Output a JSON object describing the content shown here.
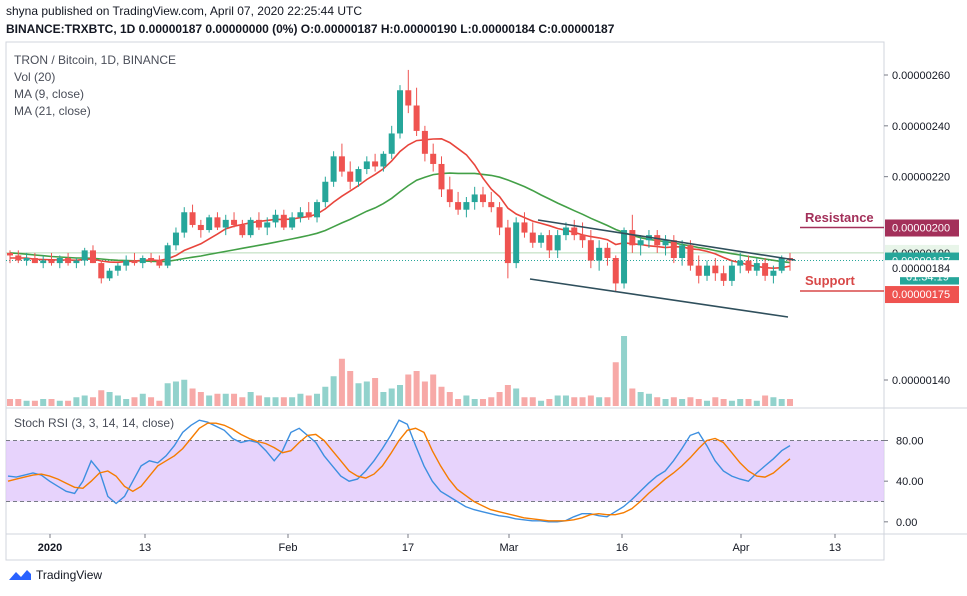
{
  "header": {
    "publish_line": "shyna published on TradingView.com, April 07, 2020 22:25:44 UTC",
    "quote_line": "BINANCE:TRXBTC, 1D  0.00000187  0.00000000 (0%)  O:0.00000187  H:0.00000190  L:0.00000184  C:0.00000187"
  },
  "legend": {
    "symbol": "TRON / Bitcoin, 1D, BINANCE",
    "vol": "Vol (20)",
    "ma9": "MA (9, close)",
    "ma21": "MA (21, close)",
    "stoch": "Stoch RSI (3, 3, 14, 14, close)"
  },
  "annotations": {
    "resistance": "Resistance",
    "support": "Support"
  },
  "price_badges": {
    "resistance": "0.00000200",
    "high": "0.00000190",
    "last": "0.00000187",
    "countdown": "01:34:19",
    "low": "0.00000184",
    "support": "0.00000175"
  },
  "brand": "TradingView",
  "colors": {
    "up": "#26a69a",
    "down": "#ef5350",
    "ma9": "#e8453c",
    "ma21": "#43a047",
    "channel": "#2f4f5c",
    "resistance": "#a3305a",
    "support": "#d84848",
    "rsi_k": "#3d8fe0",
    "rsi_d": "#f57c00",
    "rsi_band": "#e1c8fb"
  },
  "chart_data": [
    {
      "type": "candlestick",
      "title": "TRON / Bitcoin, 1D, BINANCE",
      "y_ticks": [
        "0.00000260",
        "0.00000240",
        "0.00000220",
        "0.00000140"
      ],
      "x_ticks": [
        "2020",
        "13",
        "Feb",
        "17",
        "Mar",
        "16",
        "Apr",
        "13"
      ],
      "ylim": [
        1.3e-06,
        2.7e-06
      ],
      "series": [
        {
          "name": "MA (9, close)",
          "type": "line",
          "values_ref": "ma9"
        },
        {
          "name": "MA (21, close)",
          "type": "line",
          "values_ref": "ma21"
        }
      ],
      "ohlc": [
        [
          190,
          191,
          186,
          189
        ],
        [
          189,
          191,
          186,
          187
        ],
        [
          187,
          190,
          185,
          188
        ],
        [
          188,
          190,
          186,
          186
        ],
        [
          186,
          189,
          184,
          187
        ],
        [
          187,
          190,
          185,
          186
        ],
        [
          186,
          189,
          184,
          188
        ],
        [
          188,
          190,
          185,
          186
        ],
        [
          186,
          188,
          184,
          187
        ],
        [
          187,
          192,
          185,
          191
        ],
        [
          191,
          193,
          186,
          186
        ],
        [
          186,
          187,
          178,
          180
        ],
        [
          180,
          184,
          179,
          183
        ],
        [
          183,
          186,
          181,
          185
        ],
        [
          185,
          189,
          183,
          187
        ],
        [
          187,
          190,
          185,
          186
        ],
        [
          186,
          189,
          184,
          188
        ],
        [
          188,
          190,
          186,
          187
        ],
        [
          187,
          189,
          184,
          185
        ],
        [
          185,
          194,
          184,
          193
        ],
        [
          193,
          200,
          191,
          198
        ],
        [
          198,
          208,
          196,
          206
        ],
        [
          206,
          209,
          200,
          201
        ],
        [
          201,
          203,
          196,
          199
        ],
        [
          199,
          205,
          198,
          204
        ],
        [
          204,
          206,
          199,
          200
        ],
        [
          200,
          205,
          197,
          203
        ],
        [
          203,
          206,
          200,
          201
        ],
        [
          201,
          203,
          196,
          197
        ],
        [
          197,
          204,
          196,
          203
        ],
        [
          203,
          206,
          199,
          200
        ],
        [
          200,
          204,
          197,
          202
        ],
        [
          202,
          207,
          200,
          205
        ],
        [
          205,
          207,
          199,
          200
        ],
        [
          200,
          206,
          199,
          204
        ],
        [
          204,
          208,
          202,
          206
        ],
        [
          206,
          210,
          203,
          204
        ],
        [
          204,
          211,
          202,
          210
        ],
        [
          210,
          220,
          208,
          218
        ],
        [
          218,
          230,
          216,
          228
        ],
        [
          228,
          233,
          220,
          222
        ],
        [
          222,
          226,
          215,
          218
        ],
        [
          218,
          224,
          216,
          223
        ],
        [
          223,
          228,
          221,
          226
        ],
        [
          226,
          229,
          222,
          224
        ],
        [
          224,
          230,
          222,
          229
        ],
        [
          229,
          240,
          227,
          237
        ],
        [
          237,
          256,
          235,
          254
        ],
        [
          254,
          262,
          245,
          248
        ],
        [
          248,
          255,
          236,
          238
        ],
        [
          238,
          240,
          226,
          229
        ],
        [
          229,
          233,
          222,
          225
        ],
        [
          225,
          228,
          212,
          215
        ],
        [
          215,
          220,
          208,
          210
        ],
        [
          210,
          214,
          205,
          207
        ],
        [
          207,
          212,
          204,
          210
        ],
        [
          210,
          216,
          207,
          213
        ],
        [
          213,
          216,
          208,
          210
        ],
        [
          210,
          214,
          206,
          208
        ],
        [
          208,
          210,
          197,
          200
        ],
        [
          200,
          203,
          180,
          186
        ],
        [
          186,
          204,
          184,
          202
        ],
        [
          202,
          206,
          196,
          198
        ],
        [
          198,
          202,
          192,
          194
        ],
        [
          194,
          198,
          192,
          197
        ],
        [
          197,
          199,
          188,
          191
        ],
        [
          191,
          199,
          188,
          197
        ],
        [
          197,
          202,
          195,
          200
        ],
        [
          200,
          203,
          195,
          197
        ],
        [
          197,
          202,
          192,
          195
        ],
        [
          195,
          199,
          184,
          187
        ],
        [
          187,
          195,
          183,
          192
        ],
        [
          192,
          194,
          185,
          188
        ],
        [
          188,
          189,
          175,
          178
        ],
        [
          178,
          200,
          176,
          199
        ],
        [
          199,
          205,
          190,
          193
        ],
        [
          193,
          197,
          189,
          195
        ],
        [
          195,
          199,
          192,
          197
        ],
        [
          197,
          199,
          190,
          193
        ],
        [
          193,
          197,
          189,
          195
        ],
        [
          195,
          197,
          186,
          188
        ],
        [
          188,
          195,
          185,
          193
        ],
        [
          193,
          195,
          183,
          185
        ],
        [
          185,
          189,
          178,
          181
        ],
        [
          181,
          187,
          179,
          185
        ],
        [
          185,
          188,
          179,
          182
        ],
        [
          182,
          185,
          177,
          179
        ],
        [
          179,
          187,
          177,
          185
        ],
        [
          185,
          190,
          182,
          187
        ],
        [
          187,
          189,
          182,
          183
        ],
        [
          183,
          188,
          181,
          186
        ],
        [
          186,
          188,
          179,
          181
        ],
        [
          181,
          185,
          178,
          183
        ],
        [
          183,
          189,
          182,
          188
        ],
        [
          188,
          190,
          183,
          187
        ]
      ],
      "ma9": [
        188,
        188,
        188,
        187.5,
        187.4,
        187.3,
        187.2,
        187.2,
        187.1,
        187.5,
        187.6,
        186.8,
        186.4,
        186.3,
        186.6,
        186.8,
        187.1,
        187.2,
        187.0,
        187.7,
        189,
        191,
        192.3,
        193.6,
        195.5,
        197.4,
        199.5,
        200.5,
        201.2,
        201.9,
        202.4,
        202.8,
        203.2,
        203.2,
        203.3,
        203.9,
        204.3,
        205.3,
        207.3,
        210,
        212.3,
        214.4,
        216.5,
        218.9,
        220.9,
        223.1,
        226.2,
        229.9,
        232.5,
        234.2,
        234.5,
        234.8,
        234.9,
        233.4,
        231,
        228.6,
        224.6,
        219.4,
        215.1,
        212.1,
        207.6,
        205.3,
        203.9,
        202.5,
        201.6,
        200.7,
        199.6,
        198.9,
        198.1,
        197.1,
        196.4,
        195.9,
        195.2,
        193.3,
        194,
        193.6,
        193.3,
        192.8,
        192.5,
        192.1,
        192.4,
        192.4,
        191.6,
        191.3,
        190.6,
        189.6,
        188.2,
        186.9,
        186.2,
        185.2,
        184.7,
        184.2,
        184,
        184.2,
        184.8
      ],
      "ma21": [
        190,
        189.8,
        189.5,
        189.2,
        188.9,
        188.6,
        188.4,
        188.2,
        188,
        188,
        187.9,
        187.6,
        187.3,
        187.1,
        187,
        186.9,
        186.8,
        186.7,
        186.6,
        186.7,
        187.2,
        187.8,
        188.3,
        188.8,
        189.4,
        190,
        190.6,
        191.2,
        191.8,
        192.4,
        193,
        193.6,
        194.2,
        194.9,
        195.5,
        196.2,
        196.9,
        197.7,
        198.8,
        200.3,
        201.8,
        203.2,
        204.8,
        206.4,
        207.7,
        209.4,
        211.5,
        214.1,
        216.5,
        218.6,
        219.8,
        220.8,
        221.2,
        221.4,
        221.3,
        221.3,
        221.3,
        220.9,
        220.5,
        219.8,
        218.7,
        217.4,
        216.1,
        214.5,
        212.8,
        211.2,
        209.6,
        208.1,
        206.6,
        205.2,
        203.6,
        202.2,
        200.8,
        199.2,
        198,
        196.9,
        196,
        195.3,
        194.9,
        194.4,
        193.9,
        193.3,
        192.8,
        192.1,
        191.6,
        190.9,
        190.3,
        189.7,
        189.2,
        188.6,
        188.1,
        187.6,
        187.1,
        186.6,
        186.2
      ],
      "volume": [
        4,
        4,
        3,
        3,
        4,
        4,
        3,
        3,
        5,
        6,
        5,
        9,
        8,
        6,
        4,
        5,
        7,
        5,
        3,
        13,
        14,
        15,
        10,
        8,
        6,
        7,
        7,
        7,
        5,
        8,
        6,
        5,
        5,
        5,
        5,
        7,
        6,
        7,
        11,
        17,
        27,
        20,
        13,
        14,
        16,
        8,
        10,
        12,
        18,
        20,
        14,
        18,
        11,
        8,
        4,
        6,
        4,
        4,
        5,
        8,
        12,
        10,
        5,
        5,
        3,
        4,
        6,
        6,
        5,
        5,
        6,
        5,
        5,
        25,
        40,
        10,
        8,
        7,
        5,
        4,
        5,
        4,
        5,
        4,
        3,
        5,
        4,
        3,
        4,
        4,
        3,
        6,
        5,
        4,
        4
      ],
      "channel_upper": {
        "from": [
          "Mar 05",
          2.04e-06
        ],
        "to": [
          "Apr 07",
          1.88e-06
        ]
      },
      "channel_lower": {
        "from": [
          "Mar 02",
          1.79e-06
        ],
        "to": [
          "Apr 07",
          1.63e-06
        ]
      },
      "resistance": 2e-06,
      "support": 1.75e-06
    },
    {
      "type": "line",
      "title": "Stoch RSI (3, 3, 14, 14, close)",
      "y_ticks": [
        "80.00",
        "40.00",
        "0.00"
      ],
      "ylim": [
        -10,
        110
      ],
      "bands": [
        20,
        80
      ],
      "series": [
        {
          "name": "K",
          "values": [
            45,
            44,
            46,
            48,
            46,
            40,
            35,
            30,
            28,
            40,
            60,
            50,
            25,
            18,
            25,
            40,
            55,
            60,
            58,
            65,
            75,
            88,
            95,
            100,
            98,
            94,
            90,
            82,
            78,
            80,
            78,
            70,
            60,
            70,
            88,
            92,
            85,
            78,
            65,
            55,
            45,
            40,
            42,
            50,
            60,
            72,
            85,
            100,
            96,
            75,
            55,
            40,
            30,
            25,
            20,
            15,
            12,
            10,
            8,
            6,
            5,
            3,
            2,
            1,
            1,
            0,
            0,
            1,
            5,
            8,
            8,
            6,
            5,
            10,
            15,
            22,
            30,
            38,
            45,
            50,
            60,
            72,
            85,
            88,
            75,
            60,
            50,
            45,
            42,
            40,
            48,
            55,
            62,
            70,
            75
          ]
        },
        {
          "name": "D",
          "values": [
            40,
            42,
            44,
            46,
            47,
            45,
            42,
            38,
            34,
            33,
            40,
            48,
            50,
            45,
            35,
            30,
            35,
            45,
            55,
            60,
            65,
            72,
            82,
            92,
            97,
            97,
            95,
            91,
            86,
            82,
            79,
            77,
            73,
            68,
            70,
            78,
            85,
            86,
            80,
            70,
            60,
            50,
            45,
            43,
            47,
            55,
            67,
            80,
            90,
            92,
            88,
            70,
            55,
            42,
            32,
            26,
            20,
            16,
            12,
            10,
            8,
            6,
            4,
            3,
            2,
            1,
            1,
            1,
            2,
            4,
            7,
            8,
            7,
            7,
            9,
            13,
            20,
            28,
            35,
            42,
            48,
            55,
            63,
            72,
            80,
            82,
            78,
            68,
            58,
            50,
            45,
            44,
            48,
            55,
            62
          ]
        }
      ]
    }
  ]
}
